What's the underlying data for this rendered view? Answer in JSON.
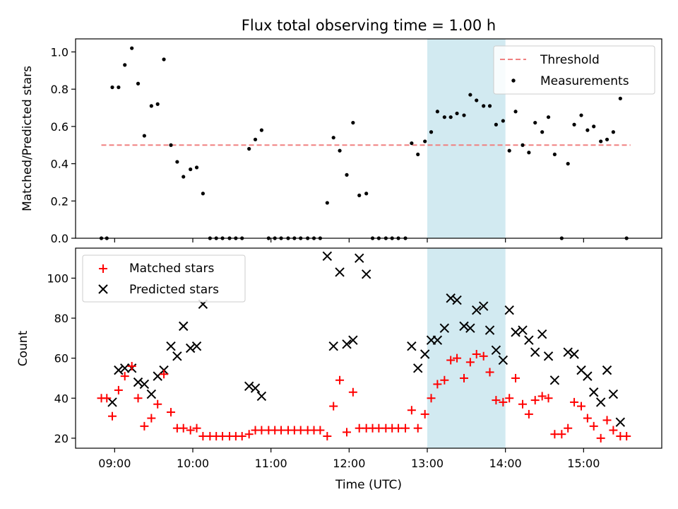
{
  "chart_data": [
    {
      "type": "scatter",
      "title": "Flux total observing time = 1.00 h",
      "xlabel": "",
      "ylabel": "Matched/Predicted stars",
      "xlim": [
        8.5,
        16.0
      ],
      "ylim": [
        0,
        1.07
      ],
      "yticks": [
        "0.0",
        "0.2",
        "0.4",
        "0.6",
        "0.8",
        "1.0"
      ],
      "ytick_values": [
        0,
        0.2,
        0.4,
        0.6,
        0.8,
        1.0
      ],
      "xtick_values": [
        9,
        10,
        11,
        12,
        13,
        14,
        15
      ],
      "highlight_span": {
        "x_start": 13.0,
        "x_end": 14.0,
        "color": "#add8e6"
      },
      "threshold": {
        "name": "Threshold",
        "value": 0.5,
        "x_range": [
          8.83,
          15.6
        ],
        "color": "#f08080",
        "style": "dashed"
      },
      "legend": {
        "placement": "top-right",
        "entries": [
          "Threshold",
          "Measurements"
        ]
      },
      "series": [
        {
          "name": "Measurements",
          "color": "#000000",
          "marker": "dot",
          "points": [
            [
              8.83,
              0.0
            ],
            [
              8.9,
              0.0
            ],
            [
              8.97,
              0.81
            ],
            [
              9.05,
              0.81
            ],
            [
              9.13,
              0.93
            ],
            [
              9.22,
              1.02
            ],
            [
              9.3,
              0.83
            ],
            [
              9.38,
              0.55
            ],
            [
              9.47,
              0.71
            ],
            [
              9.55,
              0.72
            ],
            [
              9.63,
              0.96
            ],
            [
              9.72,
              0.5
            ],
            [
              9.8,
              0.41
            ],
            [
              9.88,
              0.33
            ],
            [
              9.97,
              0.37
            ],
            [
              10.05,
              0.38
            ],
            [
              10.13,
              0.24
            ],
            [
              10.22,
              0.0
            ],
            [
              10.3,
              0.0
            ],
            [
              10.38,
              0.0
            ],
            [
              10.47,
              0.0
            ],
            [
              10.55,
              0.0
            ],
            [
              10.63,
              0.0
            ],
            [
              10.72,
              0.48
            ],
            [
              10.8,
              0.53
            ],
            [
              10.88,
              0.58
            ],
            [
              10.97,
              0.0
            ],
            [
              11.05,
              0.0
            ],
            [
              11.13,
              0.0
            ],
            [
              11.22,
              0.0
            ],
            [
              11.3,
              0.0
            ],
            [
              11.38,
              0.0
            ],
            [
              11.47,
              0.0
            ],
            [
              11.55,
              0.0
            ],
            [
              11.63,
              0.0
            ],
            [
              11.72,
              0.19
            ],
            [
              11.8,
              0.54
            ],
            [
              11.88,
              0.47
            ],
            [
              11.97,
              0.34
            ],
            [
              12.05,
              0.62
            ],
            [
              12.13,
              0.23
            ],
            [
              12.22,
              0.24
            ],
            [
              12.3,
              0.0
            ],
            [
              12.38,
              0.0
            ],
            [
              12.47,
              0.0
            ],
            [
              12.55,
              0.0
            ],
            [
              12.63,
              0.0
            ],
            [
              12.72,
              0.0
            ],
            [
              12.8,
              0.51
            ],
            [
              12.88,
              0.45
            ],
            [
              12.97,
              0.52
            ],
            [
              13.05,
              0.57
            ],
            [
              13.13,
              0.68
            ],
            [
              13.22,
              0.65
            ],
            [
              13.3,
              0.65
            ],
            [
              13.38,
              0.67
            ],
            [
              13.47,
              0.66
            ],
            [
              13.55,
              0.77
            ],
            [
              13.63,
              0.74
            ],
            [
              13.72,
              0.71
            ],
            [
              13.8,
              0.71
            ],
            [
              13.88,
              0.61
            ],
            [
              13.97,
              0.63
            ],
            [
              14.05,
              0.47
            ],
            [
              14.13,
              0.68
            ],
            [
              14.22,
              0.5
            ],
            [
              14.3,
              0.46
            ],
            [
              14.38,
              0.62
            ],
            [
              14.47,
              0.57
            ],
            [
              14.55,
              0.65
            ],
            [
              14.63,
              0.45
            ],
            [
              14.72,
              0.0
            ],
            [
              14.8,
              0.4
            ],
            [
              14.88,
              0.61
            ],
            [
              14.97,
              0.66
            ],
            [
              15.05,
              0.58
            ],
            [
              15.13,
              0.6
            ],
            [
              15.22,
              0.52
            ],
            [
              15.3,
              0.53
            ],
            [
              15.38,
              0.57
            ],
            [
              15.47,
              0.75
            ],
            [
              15.55,
              0.0
            ]
          ]
        }
      ]
    },
    {
      "type": "scatter",
      "title": "",
      "xlabel": "Time (UTC)",
      "ylabel": "Count",
      "xlim": [
        8.5,
        16.0
      ],
      "ylim": [
        15,
        115
      ],
      "yticks": [
        "20",
        "40",
        "60",
        "80",
        "100"
      ],
      "ytick_values": [
        20,
        40,
        60,
        80,
        100
      ],
      "xticks": [
        "09:00",
        "10:00",
        "11:00",
        "12:00",
        "13:00",
        "14:00",
        "15:00"
      ],
      "xtick_values": [
        9,
        10,
        11,
        12,
        13,
        14,
        15
      ],
      "highlight_span": {
        "x_start": 13.0,
        "x_end": 14.0,
        "color": "#add8e6"
      },
      "legend": {
        "placement": "top-left",
        "entries": [
          "Matched stars",
          "Predicted stars"
        ]
      },
      "series": [
        {
          "name": "Matched stars",
          "color": "#ff0000",
          "marker": "plus",
          "points": [
            [
              8.83,
              40
            ],
            [
              8.9,
              40
            ],
            [
              8.97,
              31
            ],
            [
              9.05,
              44
            ],
            [
              9.13,
              51
            ],
            [
              9.22,
              56
            ],
            [
              9.3,
              40
            ],
            [
              9.38,
              26
            ],
            [
              9.47,
              30
            ],
            [
              9.55,
              37
            ],
            [
              9.63,
              52
            ],
            [
              9.72,
              33
            ],
            [
              9.8,
              25
            ],
            [
              9.88,
              25
            ],
            [
              9.97,
              24
            ],
            [
              10.05,
              25
            ],
            [
              10.13,
              21
            ],
            [
              10.22,
              21
            ],
            [
              10.3,
              21
            ],
            [
              10.38,
              21
            ],
            [
              10.47,
              21
            ],
            [
              10.55,
              21
            ],
            [
              10.63,
              21
            ],
            [
              10.72,
              22
            ],
            [
              10.8,
              24
            ],
            [
              10.88,
              24
            ],
            [
              10.97,
              24
            ],
            [
              11.05,
              24
            ],
            [
              11.13,
              24
            ],
            [
              11.22,
              24
            ],
            [
              11.3,
              24
            ],
            [
              11.38,
              24
            ],
            [
              11.47,
              24
            ],
            [
              11.55,
              24
            ],
            [
              11.63,
              24
            ],
            [
              11.72,
              21
            ],
            [
              11.8,
              36
            ],
            [
              11.88,
              49
            ],
            [
              11.97,
              23
            ],
            [
              12.05,
              43
            ],
            [
              12.13,
              25
            ],
            [
              12.22,
              25
            ],
            [
              12.3,
              25
            ],
            [
              12.38,
              25
            ],
            [
              12.47,
              25
            ],
            [
              12.55,
              25
            ],
            [
              12.63,
              25
            ],
            [
              12.72,
              25
            ],
            [
              12.8,
              34
            ],
            [
              12.88,
              25
            ],
            [
              12.97,
              32
            ],
            [
              13.05,
              40
            ],
            [
              13.13,
              47
            ],
            [
              13.22,
              49
            ],
            [
              13.3,
              59
            ],
            [
              13.38,
              60
            ],
            [
              13.47,
              50
            ],
            [
              13.55,
              58
            ],
            [
              13.63,
              62
            ],
            [
              13.72,
              61
            ],
            [
              13.8,
              53
            ],
            [
              13.88,
              39
            ],
            [
              13.97,
              38
            ],
            [
              14.05,
              40
            ],
            [
              14.13,
              50
            ],
            [
              14.22,
              37
            ],
            [
              14.3,
              32
            ],
            [
              14.38,
              39
            ],
            [
              14.47,
              41
            ],
            [
              14.55,
              40
            ],
            [
              14.63,
              22
            ],
            [
              14.72,
              22
            ],
            [
              14.8,
              25
            ],
            [
              14.88,
              38
            ],
            [
              14.97,
              36
            ],
            [
              15.05,
              30
            ],
            [
              15.13,
              26
            ],
            [
              15.22,
              20
            ],
            [
              15.3,
              29
            ],
            [
              15.38,
              24
            ],
            [
              15.47,
              21
            ],
            [
              15.55,
              21
            ]
          ]
        },
        {
          "name": "Predicted stars",
          "color": "#000000",
          "marker": "x",
          "points": [
            [
              8.97,
              38
            ],
            [
              9.05,
              54
            ],
            [
              9.13,
              55
            ],
            [
              9.22,
              55
            ],
            [
              9.3,
              48
            ],
            [
              9.38,
              47
            ],
            [
              9.47,
              42
            ],
            [
              9.55,
              51
            ],
            [
              9.63,
              54
            ],
            [
              9.72,
              66
            ],
            [
              9.8,
              61
            ],
            [
              9.88,
              76
            ],
            [
              9.97,
              65
            ],
            [
              10.05,
              66
            ],
            [
              10.13,
              87
            ],
            [
              10.72,
              46
            ],
            [
              10.8,
              45
            ],
            [
              10.88,
              41
            ],
            [
              11.72,
              111
            ],
            [
              11.8,
              66
            ],
            [
              11.88,
              103
            ],
            [
              11.97,
              67
            ],
            [
              12.05,
              69
            ],
            [
              12.13,
              110
            ],
            [
              12.22,
              102
            ],
            [
              12.8,
              66
            ],
            [
              12.88,
              55
            ],
            [
              12.97,
              62
            ],
            [
              13.05,
              69
            ],
            [
              13.13,
              69
            ],
            [
              13.22,
              75
            ],
            [
              13.3,
              90
            ],
            [
              13.38,
              89
            ],
            [
              13.47,
              76
            ],
            [
              13.55,
              75
            ],
            [
              13.63,
              84
            ],
            [
              13.72,
              86
            ],
            [
              13.8,
              74
            ],
            [
              13.88,
              64
            ],
            [
              13.97,
              59
            ],
            [
              14.05,
              84
            ],
            [
              14.13,
              73
            ],
            [
              14.22,
              74
            ],
            [
              14.3,
              69
            ],
            [
              14.38,
              63
            ],
            [
              14.47,
              72
            ],
            [
              14.55,
              61
            ],
            [
              14.63,
              49
            ],
            [
              14.8,
              63
            ],
            [
              14.88,
              62
            ],
            [
              14.97,
              54
            ],
            [
              15.05,
              51
            ],
            [
              15.13,
              43
            ],
            [
              15.22,
              38
            ],
            [
              15.3,
              54
            ],
            [
              15.38,
              42
            ],
            [
              15.47,
              28
            ]
          ]
        }
      ]
    }
  ]
}
